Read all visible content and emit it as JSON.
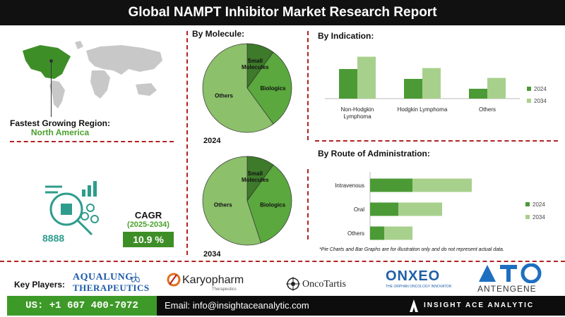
{
  "header": {
    "title": "Global NAMPT Inhibitor Market Research Report"
  },
  "region": {
    "label": "Fastest Growing Region:",
    "value": "North America"
  },
  "cagr": {
    "label": "CAGR",
    "period": "(2025-2034)",
    "value": "10.9 %"
  },
  "sections": {
    "by_molecule": "By Molecule:",
    "by_indication": "By  Indication:",
    "by_route": "By Route of Administration:"
  },
  "note": "*Pie Charts and Bar Graphs are for illustration only and do not represent actual data.",
  "chart_data": [
    {
      "type": "pie",
      "title": "By Molecule:",
      "year_label": "2024",
      "labels": [
        "Small Molecules",
        "Biologics",
        "Others"
      ],
      "values": [
        10,
        30,
        60
      ]
    },
    {
      "type": "pie",
      "year_label": "2034",
      "labels": [
        "Small Molecules",
        "Biologics",
        "Others"
      ],
      "values": [
        10,
        35,
        55
      ]
    },
    {
      "type": "bar",
      "orientation": "vertical",
      "title": "By  Indication:",
      "categories": [
        "Non-Hodgkin Lymphoma",
        "Hodgkin Lymphoma",
        "Others"
      ],
      "series": [
        {
          "name": "2024",
          "values": [
            60,
            40,
            20
          ],
          "color": "#4c9a35"
        },
        {
          "name": "2034",
          "values": [
            85,
            62,
            42
          ],
          "color": "#a8d08d"
        }
      ],
      "ylim": [
        0,
        100
      ],
      "legend": "right"
    },
    {
      "type": "bar",
      "orientation": "horizontal",
      "stacked": true,
      "title": "By Route of Administration:",
      "categories": [
        "Intravenous",
        "Oral",
        "Others"
      ],
      "series": [
        {
          "name": "2024",
          "values": [
            30,
            20,
            10
          ],
          "color": "#4c9a35"
        },
        {
          "name": "2034",
          "values": [
            42,
            31,
            20
          ],
          "color": "#a8d08d"
        }
      ],
      "xlim": [
        0,
        100
      ],
      "legend": "right"
    }
  ],
  "key_players": {
    "label": "Key Players:",
    "aqualung_line1": "AQUALUNG",
    "aqualung_line2": "THERAPEUTICS",
    "karyopharm": "Karyopharm",
    "karyopharm_sub": "Therapeutics",
    "oncotartis": "OncoTartis",
    "onxeo": "ONXEO",
    "onxeo_sub": "THE ORPHAN ONCOLOGY INNOVATOR",
    "antengene": "ANTENGENE"
  },
  "footer": {
    "phone": "US: +1 607 400-7072",
    "email": "Email: info@insightaceanalytic.com",
    "brand": "INSIGHT ACE ANALYTIC"
  },
  "colors": {
    "dark_green": "#4c9a35",
    "light_green": "#a8d08d",
    "pie_others": "#8cc06b",
    "pie_small": "#3d7a2a",
    "pie_bio": "#5aa83e",
    "accent_red": "#b22222"
  }
}
